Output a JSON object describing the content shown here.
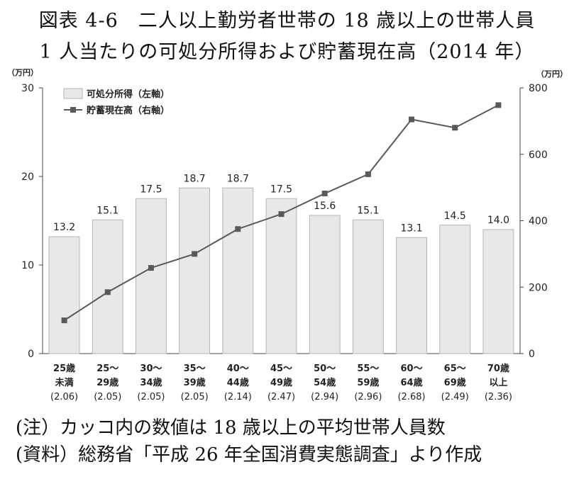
{
  "title_line1": "図表 4-6　二人以上勤労者世帯の 18 歳以上の世帯人員",
  "title_line2": "1 人当たりの可処分所得および貯蓄現在高（2014 年）",
  "notes": [
    "(注）カッコ内の数値は 18 歳以上の平均世帯人員数",
    "(資料）総務省「平成 26 年全国消費実態調査」より作成"
  ],
  "chart_data": {
    "type": "bar",
    "categories": [
      [
        "25歳",
        "未満",
        "(2.06)"
      ],
      [
        "25～",
        "29歳",
        "(2.05)"
      ],
      [
        "30～",
        "34歳",
        "(2.05)"
      ],
      [
        "35～",
        "39歳",
        "(2.05)"
      ],
      [
        "40～",
        "44歳",
        "(2.14)"
      ],
      [
        "45～",
        "49歳",
        "(2.47)"
      ],
      [
        "50～",
        "54歳",
        "(2.94)"
      ],
      [
        "55～",
        "59歳",
        "(2.96)"
      ],
      [
        "60～",
        "64歳",
        "(2.68)"
      ],
      [
        "65～",
        "69歳",
        "(2.49)"
      ],
      [
        "70歳",
        "以上",
        "(2.36)"
      ]
    ],
    "series": [
      {
        "name": "可処分所得（左軸）",
        "type": "bar",
        "axis": "left",
        "values": [
          13.2,
          15.1,
          17.5,
          18.7,
          18.7,
          17.5,
          15.6,
          15.1,
          13.1,
          14.5,
          14.0
        ],
        "labels": [
          "13.2",
          "15.1",
          "17.5",
          "18.7",
          "18.7",
          "17.5",
          "15.6",
          "15.1",
          "13.1",
          "14.5",
          "14.0"
        ]
      },
      {
        "name": "貯蓄現在高（右軸）",
        "type": "line",
        "axis": "right",
        "values": [
          100,
          185,
          258,
          300,
          375,
          420,
          482,
          540,
          705,
          680,
          748
        ]
      }
    ],
    "left_axis": {
      "unit": "（万円）",
      "range": [
        0,
        30
      ],
      "ticks": [
        "0",
        "10",
        "20",
        "30"
      ]
    },
    "right_axis": {
      "unit": "（万円）",
      "range": [
        0,
        800
      ],
      "ticks": [
        "0",
        "200",
        "400",
        "600",
        "800"
      ]
    },
    "legend_position": "top-left",
    "colors": {
      "bar_fill": "#e8e8e8",
      "bar_stroke": "#b4b4b4",
      "line": "#5a5a5a",
      "axis": "#444444"
    }
  }
}
